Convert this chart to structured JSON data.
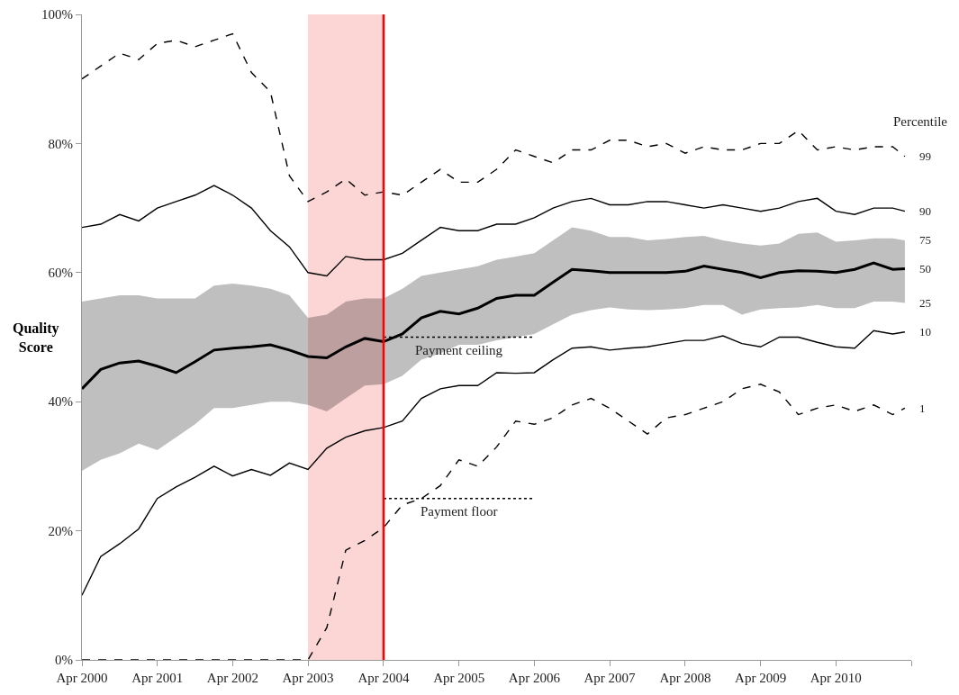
{
  "chart_data": {
    "type": "line",
    "ylabel": "Quality Score",
    "legend_title": "Percentile",
    "legend": false,
    "grid": false,
    "marker": "none",
    "x": [
      "2000-04",
      "2000-07",
      "2000-10",
      "2001-01",
      "2001-04",
      "2001-07",
      "2001-10",
      "2002-01",
      "2002-04",
      "2002-07",
      "2002-10",
      "2003-01",
      "2003-04",
      "2003-07",
      "2003-10",
      "2004-01",
      "2004-04",
      "2004-07",
      "2004-10",
      "2005-01",
      "2005-04",
      "2005-07",
      "2005-10",
      "2006-01",
      "2006-04",
      "2006-07",
      "2006-10",
      "2007-01",
      "2007-04",
      "2007-07",
      "2007-10",
      "2008-01",
      "2008-04",
      "2008-07",
      "2008-10",
      "2009-01",
      "2009-04",
      "2009-07",
      "2009-10",
      "2010-01",
      "2010-04",
      "2010-07",
      "2010-10",
      "2011-01",
      "2011-03"
    ],
    "xlim": [
      "2000-04",
      "2011-04"
    ],
    "xticks": [
      {
        "value": "2000-04",
        "label": "Apr 2000"
      },
      {
        "value": "2001-04",
        "label": "Apr 2001"
      },
      {
        "value": "2002-04",
        "label": "Apr 2002"
      },
      {
        "value": "2003-04",
        "label": "Apr 2003"
      },
      {
        "value": "2004-04",
        "label": "Apr 2004"
      },
      {
        "value": "2005-04",
        "label": "Apr 2005"
      },
      {
        "value": "2006-04",
        "label": "Apr 2006"
      },
      {
        "value": "2007-04",
        "label": "Apr 2007"
      },
      {
        "value": "2008-04",
        "label": "Apr 2008"
      },
      {
        "value": "2009-04",
        "label": "Apr 2009"
      },
      {
        "value": "2010-04",
        "label": "Apr 2010"
      },
      {
        "value": "2011-04",
        "label": null
      }
    ],
    "ylim": [
      0,
      100
    ],
    "yticks": [
      {
        "value": 0,
        "label": "0%"
      },
      {
        "value": 20,
        "label": "20%"
      },
      {
        "value": 40,
        "label": "40%"
      },
      {
        "value": 60,
        "label": "60%"
      },
      {
        "value": 80,
        "label": "80%"
      },
      {
        "value": 100,
        "label": "100%"
      }
    ],
    "series": [
      {
        "name": "99",
        "color": "#000000",
        "line_style": "dashed",
        "values": [
          90,
          92,
          94,
          93,
          95.5,
          96,
          95,
          96,
          97,
          91,
          88,
          75,
          71,
          72.5,
          74.5,
          72,
          72.5,
          72,
          74,
          76,
          74,
          74,
          76,
          79,
          78,
          77,
          79,
          79,
          80.5,
          80.5,
          79.5,
          80,
          78.5,
          79.5,
          79,
          79,
          80,
          80,
          82,
          79,
          79.5,
          79,
          79.5,
          79.5,
          78
        ]
      },
      {
        "name": "90",
        "color": "#000000",
        "line_style": "solid",
        "values": [
          67,
          67.5,
          69,
          68,
          70,
          71,
          72,
          73.5,
          72,
          70,
          66.5,
          64,
          60,
          59.5,
          62.5,
          62,
          62,
          63,
          65,
          67,
          66.5,
          66.5,
          67.5,
          67.5,
          68.5,
          70,
          71,
          71.5,
          70.5,
          70.5,
          71,
          71,
          70.5,
          70,
          70.5,
          70,
          69.5,
          70,
          71,
          71.5,
          69.5,
          69,
          70,
          70,
          69.5
        ]
      },
      {
        "name": "50",
        "color": "#000000",
        "line_style": "solid",
        "values": [
          42,
          45,
          46,
          46.3,
          45.5,
          44.5,
          46.2,
          48,
          48.3,
          48.5,
          48.8,
          48,
          47,
          46.8,
          48.5,
          49.8,
          49.3,
          50.5,
          53,
          54,
          53.6,
          54.5,
          56,
          56.5,
          56.5,
          58.5,
          60.5,
          60.3,
          60,
          60,
          60,
          60,
          60.2,
          61,
          60.5,
          60,
          59.2,
          60,
          60.3,
          60.2,
          60,
          60.5,
          61.5,
          60.5,
          60.6
        ],
        "upper": [
          55.5,
          56,
          56.5,
          56.5,
          56,
          56,
          56,
          58,
          58.3,
          58,
          57.5,
          56.5,
          53,
          53.5,
          55.5,
          56,
          56,
          57.5,
          59.5,
          60,
          60.5,
          61,
          62,
          62.5,
          63,
          65,
          67,
          66.5,
          65.5,
          65.5,
          65,
          65.2,
          65.5,
          65.7,
          65,
          64.5,
          64.2,
          64.5,
          66,
          66.2,
          64.8,
          65,
          65.3,
          65.3,
          65
        ],
        "lower": [
          29.3,
          31,
          32,
          33.5,
          32.5,
          34.5,
          36.5,
          39,
          39,
          39.5,
          40,
          40,
          39.5,
          38.5,
          40.5,
          42.5,
          42.7,
          44,
          46.5,
          47.5,
          48.8,
          48.8,
          49.5,
          50,
          50.5,
          52,
          53.5,
          54.2,
          54.6,
          54.3,
          54.2,
          54.3,
          54.5,
          55,
          55,
          53.5,
          54.3,
          54.5,
          54.6,
          55,
          54.5,
          54.5,
          55.5,
          55.5,
          55.3
        ]
      },
      {
        "name": "10",
        "color": "#000000",
        "line_style": "solid",
        "values": [
          10,
          16,
          18,
          20.3,
          25,
          26.8,
          28.3,
          30,
          28.5,
          29.5,
          28.6,
          30.5,
          29.5,
          32.8,
          34.5,
          35.5,
          36,
          37,
          40.5,
          42,
          42.5,
          42.5,
          44.5,
          44.4,
          44.5,
          46.5,
          48.3,
          48.5,
          48,
          48.3,
          48.5,
          49,
          49.5,
          49.5,
          50.2,
          49,
          48.5,
          50,
          50,
          49.2,
          48.5,
          48.3,
          51,
          50.5,
          50.8
        ]
      },
      {
        "name": "1",
        "color": "#000000",
        "line_style": "dashed",
        "values": [
          0,
          0,
          0,
          0,
          0,
          0,
          0,
          0,
          0,
          0,
          0,
          0,
          0,
          5,
          17,
          18.5,
          20.5,
          24,
          25,
          27,
          31,
          30,
          33,
          37,
          36.5,
          37.5,
          39.5,
          40.5,
          39,
          37,
          35,
          37.5,
          38,
          39,
          40,
          42,
          42.7,
          41.5,
          38,
          39,
          39.5,
          38.5,
          39.5,
          38,
          39
        ]
      },
      {
        "type": "line",
        "color": "#000000",
        "line_style": "dotted",
        "x": [
          "2004-04",
          "2006-04"
        ],
        "values": [
          50,
          50
        ]
      },
      {
        "type": "line",
        "color": "#000000",
        "line_style": "dotted",
        "x": [
          "2004-04",
          "2006-04"
        ],
        "values": [
          25,
          25
        ]
      }
    ],
    "ref_lines": [
      {
        "axis": "x",
        "value": "2004-04",
        "color": "#ff0000"
      }
    ],
    "bands": [
      {
        "axis": "x",
        "from": "2003-04",
        "to": "2004-04",
        "color": "#fcd5d5"
      }
    ],
    "annotations": [
      {
        "text": "Payment ceiling",
        "x": "2005-04",
        "y": 50
      },
      {
        "text": "Payment floor",
        "x": "2005-04",
        "y": 25
      },
      {
        "text": "75",
        "x": "2011-03",
        "y": 65
      },
      {
        "text": "25",
        "x": "2011-03",
        "y": 55.3
      }
    ]
  }
}
